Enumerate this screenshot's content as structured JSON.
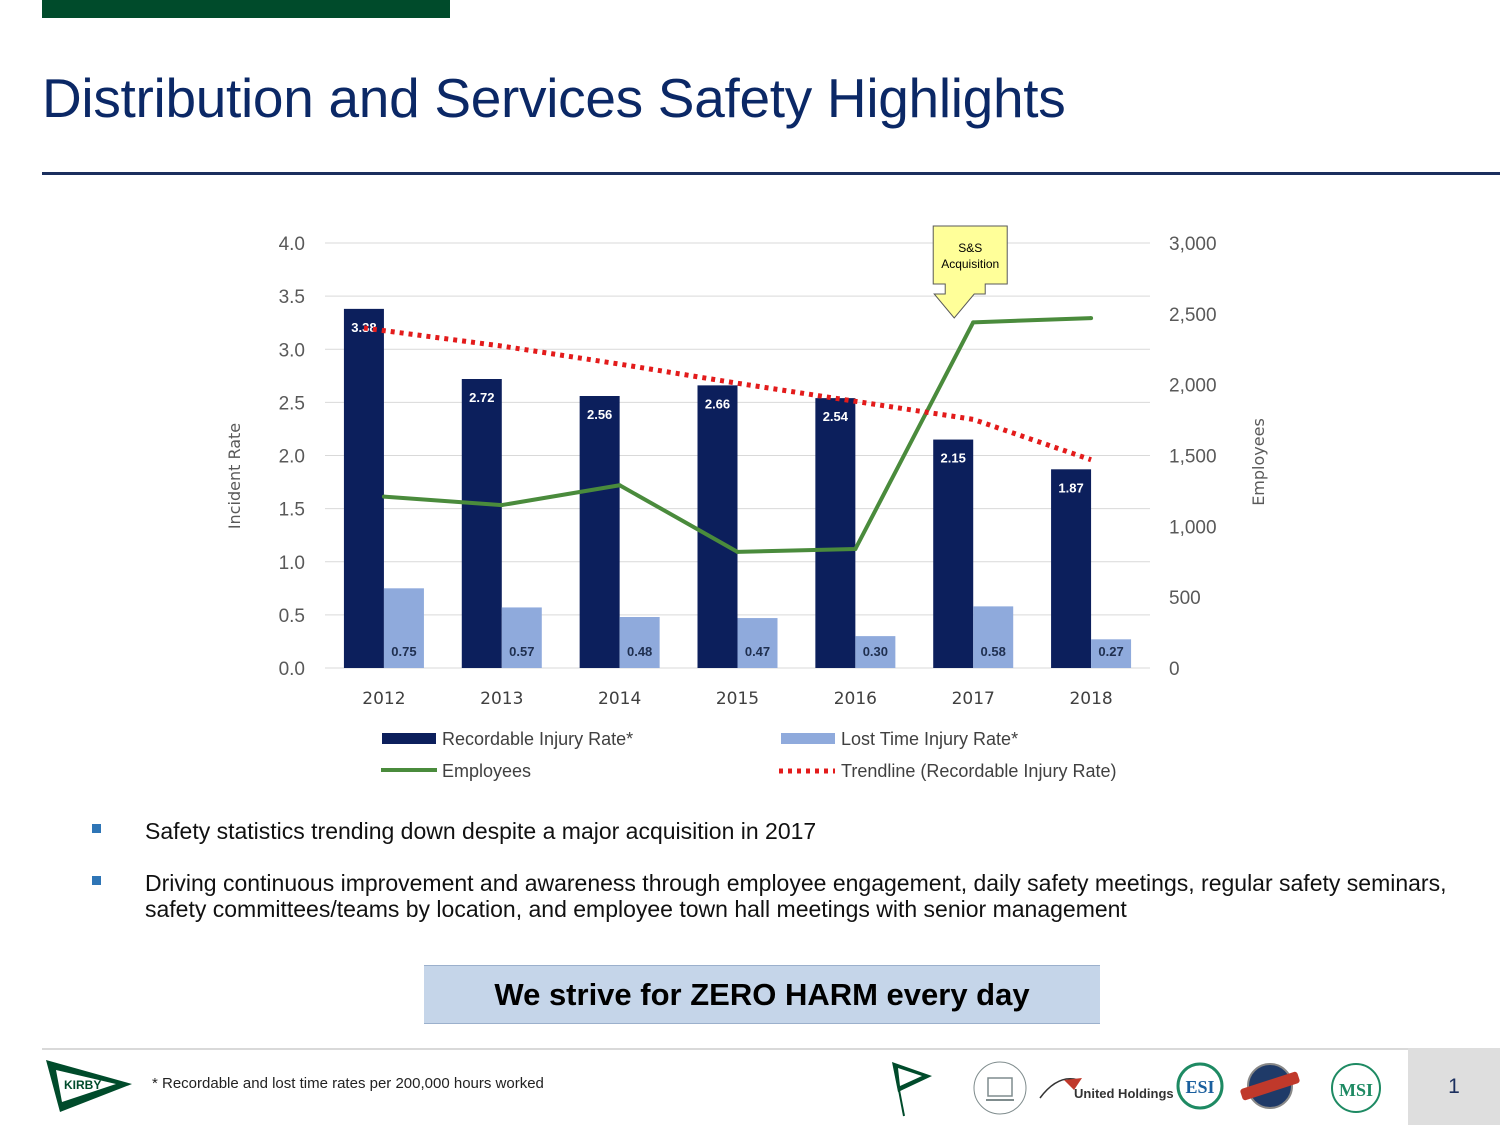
{
  "page": {
    "title": "Distribution and Services Safety Highlights",
    "bullets": [
      "Safety statistics trending down despite a major acquisition in 2017",
      "Driving continuous improvement and awareness through employee engagement, daily safety meetings, regular safety seminars, safety committees/teams by location, and employee town hall meetings with senior management"
    ],
    "callout": "We strive for ZERO HARM every day",
    "footnote": "* Recordable and lost time rates per 200,000 hours worked",
    "page_number": "1",
    "logos": {
      "kirby": "KIRBY",
      "united_holdings": "United Holdings",
      "esi": "ESI",
      "msi": "MSI"
    }
  },
  "colors": {
    "title": "#0b2866",
    "recordable": "#0c1f5c",
    "lost_time": "#8faadc",
    "employees": "#4a8b3c",
    "trendline": "#e31b1b",
    "brand_green": "#004b2b"
  },
  "chart_data": {
    "type": "bar",
    "categories": [
      "2012",
      "2013",
      "2014",
      "2015",
      "2016",
      "2017",
      "2018"
    ],
    "series": [
      {
        "name": "Recordable Injury Rate*",
        "type": "bar",
        "axis": "left",
        "values": [
          3.38,
          2.72,
          2.56,
          2.66,
          2.54,
          2.15,
          1.87
        ],
        "labels": [
          "3.38",
          "2.72",
          "2.56",
          "2.66",
          "2.54",
          "2.15",
          "1.87"
        ]
      },
      {
        "name": "Lost Time Injury Rate*",
        "type": "bar",
        "axis": "left",
        "values": [
          0.75,
          0.57,
          0.48,
          0.47,
          0.3,
          0.58,
          0.27
        ],
        "labels": [
          "0.75",
          "0.57",
          "0.48",
          "0.47",
          "0.30",
          "0.58",
          "0.27"
        ]
      },
      {
        "name": "Employees",
        "type": "line",
        "axis": "right",
        "values": [
          1210,
          1150,
          1290,
          820,
          840,
          2440,
          2470
        ]
      },
      {
        "name": "Trendline (Recordable Injury Rate)",
        "type": "line",
        "style": "dotted",
        "axis": "left",
        "values": [
          3.2,
          3.03,
          2.86,
          2.68,
          2.51,
          2.34,
          1.96
        ]
      }
    ],
    "ylabel": "Incident Rate",
    "y2label": "Employees",
    "ylim": [
      0,
      4
    ],
    "y2lim": [
      0,
      3000
    ],
    "yticks": [
      "0.0",
      "0.5",
      "1.0",
      "1.5",
      "2.0",
      "2.5",
      "3.0",
      "3.5",
      "4.0"
    ],
    "y2ticks": [
      "0",
      "500",
      "1,000",
      "1,500",
      "2,000",
      "2,500",
      "3,000"
    ],
    "annotation": {
      "text_lines": [
        "S&S",
        "Acquisition"
      ],
      "category": "2017"
    },
    "grid": true,
    "legend": "bottom"
  }
}
